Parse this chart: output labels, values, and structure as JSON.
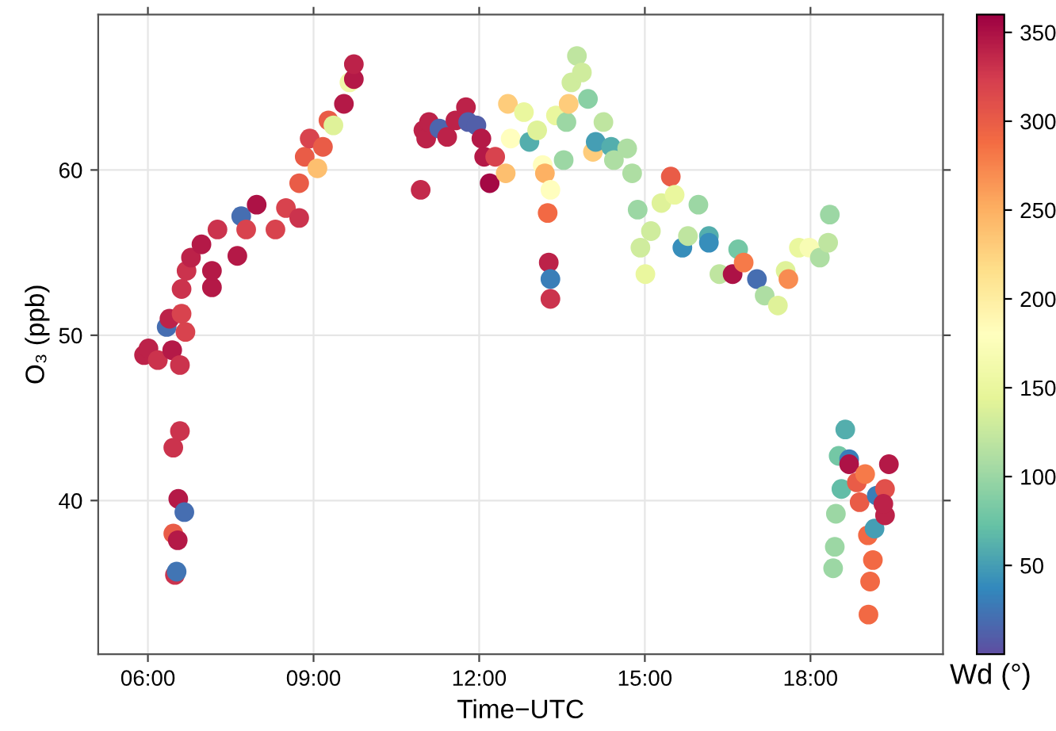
{
  "chart_data": {
    "type": "scatter",
    "xlabel": "Time−UTC",
    "ylabel": "O₃ (ppb)",
    "clabel": "Wd (°)",
    "xlim": [
      5.1,
      20.4
    ],
    "ylim": [
      30.7,
      69.4
    ],
    "xticks": [
      {
        "value": 6,
        "label": "06:00"
      },
      {
        "value": 9,
        "label": "09:00"
      },
      {
        "value": 12,
        "label": "12:00"
      },
      {
        "value": 15,
        "label": "15:00"
      },
      {
        "value": 18,
        "label": "18:00"
      }
    ],
    "yticks": [
      40,
      50,
      60
    ],
    "clim": [
      0,
      360
    ],
    "cticks": [
      50,
      100,
      150,
      200,
      250,
      300,
      350
    ],
    "grid": true,
    "marker": "circle",
    "x": [
      5.93,
      6.01,
      6.18,
      6.44,
      6.58,
      6.34,
      6.39,
      6.61,
      6.68,
      6.61,
      6.58,
      6.46,
      6.55,
      6.66,
      6.46,
      6.54,
      6.49,
      6.52,
      6.7,
      6.78,
      7.16,
      7.16,
      6.97,
      7.26,
      7.62,
      7.69,
      7.97,
      7.78,
      8.31,
      8.5,
      8.74,
      8.74,
      8.84,
      9.07,
      8.93,
      9.27,
      9.36,
      9.55,
      9.65,
      9.73,
      9.73,
      9.17,
      10.94,
      10.99,
      11.04,
      11.09,
      11.28,
      11.42,
      11.57,
      11.76,
      11.8,
      11.95,
      12.04,
      12.09,
      12.19,
      12.29,
      12.48,
      12.52,
      12.57,
      12.81,
      12.91,
      13.05,
      13.15,
      13.19,
      13.29,
      13.24,
      13.26,
      13.29,
      13.29,
      13.39,
      13.53,
      13.58,
      13.62,
      13.67,
      13.77,
      13.86,
      13.97,
      14.06,
      14.11,
      14.25,
      14.39,
      14.44,
      14.68,
      14.77,
      14.87,
      14.92,
      15.01,
      15.11,
      15.3,
      15.47,
      15.54,
      15.68,
      15.78,
      15.97,
      16.16,
      16.16,
      16.35,
      16.59,
      16.69,
      16.79,
      17.03,
      17.17,
      17.41,
      17.55,
      17.6,
      17.79,
      17.98,
      18.17,
      18.32,
      18.35,
      18.63,
      18.51,
      18.7,
      18.7,
      18.56,
      18.46,
      18.44,
      18.41,
      18.84,
      18.99,
      18.89,
      19.04,
      19.13,
      19.08,
      19.05,
      19.2,
      19.16,
      19.35,
      19.35,
      19.42,
      19.32
    ],
    "values": [
      48.8,
      49.2,
      48.5,
      49.1,
      48.2,
      50.5,
      51.0,
      51.3,
      50.2,
      52.8,
      44.2,
      43.2,
      40.1,
      39.3,
      38.0,
      37.6,
      35.5,
      35.7,
      53.9,
      54.7,
      52.9,
      53.9,
      55.5,
      56.4,
      54.8,
      57.2,
      57.9,
      56.4,
      56.4,
      57.7,
      57.1,
      59.2,
      60.8,
      60.1,
      61.9,
      63.0,
      62.7,
      64.0,
      65.3,
      65.5,
      66.4,
      61.4,
      58.8,
      62.4,
      61.9,
      62.9,
      62.5,
      62.0,
      63.0,
      63.8,
      62.9,
      62.7,
      61.9,
      60.8,
      59.2,
      60.8,
      59.8,
      64.0,
      61.9,
      63.5,
      61.7,
      62.4,
      60.3,
      59.8,
      58.8,
      57.4,
      54.4,
      53.4,
      52.2,
      63.3,
      60.6,
      62.9,
      64.0,
      65.3,
      66.9,
      65.9,
      64.3,
      61.1,
      61.7,
      62.9,
      61.4,
      60.6,
      61.3,
      59.8,
      57.6,
      55.3,
      53.7,
      56.3,
      58.0,
      59.6,
      58.5,
      55.3,
      56.0,
      57.9,
      56.0,
      55.6,
      53.7,
      53.7,
      55.2,
      54.4,
      53.4,
      52.4,
      51.8,
      53.9,
      53.4,
      55.3,
      55.3,
      54.7,
      55.6,
      57.3,
      44.3,
      42.7,
      42.5,
      42.2,
      40.7,
      39.2,
      37.2,
      35.9,
      41.1,
      41.6,
      39.9,
      37.9,
      36.4,
      35.1,
      33.1,
      40.3,
      38.3,
      40.7,
      39.1,
      42.2,
      39.8
    ],
    "cvalues": [
      340,
      340,
      330,
      345,
      330,
      20,
      340,
      320,
      320,
      330,
      330,
      330,
      345,
      20,
      300,
      345,
      330,
      25,
      330,
      340,
      345,
      345,
      345,
      330,
      345,
      20,
      350,
      320,
      320,
      320,
      330,
      300,
      300,
      240,
      320,
      300,
      140,
      345,
      160,
      345,
      340,
      300,
      335,
      340,
      340,
      340,
      15,
      340,
      340,
      340,
      10,
      10,
      345,
      345,
      355,
      320,
      240,
      230,
      180,
      150,
      60,
      140,
      180,
      250,
      180,
      290,
      340,
      30,
      330,
      150,
      100,
      100,
      230,
      130,
      120,
      130,
      90,
      230,
      50,
      120,
      60,
      110,
      110,
      110,
      100,
      130,
      150,
      130,
      140,
      300,
      150,
      40,
      120,
      100,
      60,
      40,
      120,
      350,
      80,
      280,
      20,
      110,
      140,
      140,
      270,
      150,
      170,
      110,
      120,
      100,
      60,
      80,
      30,
      350,
      70,
      100,
      100,
      100,
      300,
      280,
      300,
      290,
      290,
      290,
      290,
      30,
      50,
      310,
      340,
      345,
      340
    ]
  }
}
